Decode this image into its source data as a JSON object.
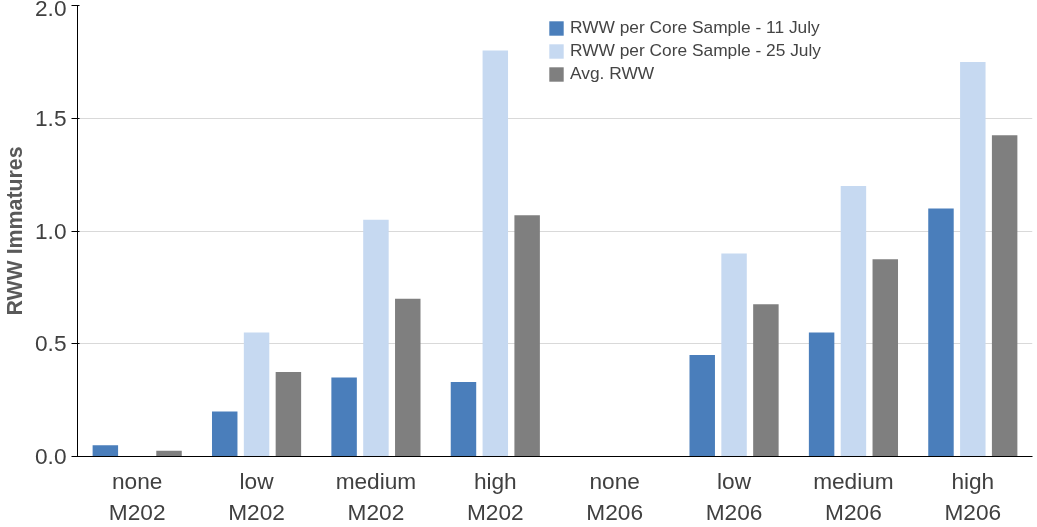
{
  "chart_data": {
    "type": "bar",
    "ylabel": "RWW Immatures",
    "categories": [
      "none\nM202",
      "low\nM202",
      "medium\nM202",
      "high\nM202",
      "none\nM206",
      "low\nM206",
      "medium\nM206",
      "high\nM206"
    ],
    "series": [
      {
        "name": "RWW per Core Sample - 11 July",
        "color": "#4a7ebb",
        "values": [
          0.05,
          0.2,
          0.35,
          0.33,
          0,
          0.45,
          0.55,
          1.1
        ]
      },
      {
        "name": "RWW per Core Sample - 25 July",
        "color": "#c6d9f1",
        "values": [
          0,
          0.55,
          1.05,
          1.8,
          0,
          0.9,
          1.2,
          1.75
        ]
      },
      {
        "name": "Avg. RWW",
        "color": "#7f7f7f",
        "values": [
          0.025,
          0.375,
          0.7,
          1.07,
          0,
          0.675,
          0.875,
          1.425
        ]
      }
    ],
    "ylim": [
      0,
      2
    ],
    "yticks": [
      {
        "value": 0,
        "label": "0.0"
      },
      {
        "value": 0.5,
        "label": "0.5"
      },
      {
        "value": 1,
        "label": "1.0"
      },
      {
        "value": 1.5,
        "label": "1.5"
      },
      {
        "value": 2,
        "label": "2.0"
      }
    ],
    "grid": "y",
    "legend": "top right"
  }
}
